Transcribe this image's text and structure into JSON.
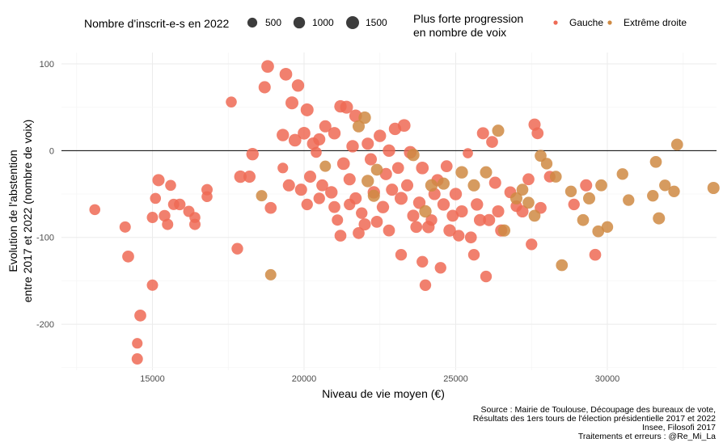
{
  "chart_data": {
    "type": "scatter",
    "xlabel": "Niveau de vie moyen (€)",
    "ylabel_lines": [
      "Evolution de l'abstention",
      "entre 2017 et 2022 (nombre de voix)"
    ],
    "xlim": [
      12000,
      33600
    ],
    "ylim": [
      -253,
      113
    ],
    "x_ticks": [
      15000,
      20000,
      25000,
      30000
    ],
    "y_ticks": [
      -200,
      -100,
      0,
      100
    ],
    "hline": 0,
    "grid": true,
    "legend_position": "top",
    "size_legend": {
      "title": "Nombre d'inscrit-e-s en 2022",
      "entries": [
        {
          "label": "500",
          "value": 500
        },
        {
          "label": "1000",
          "value": 1000
        },
        {
          "label": "1500",
          "value": 1500
        }
      ]
    },
    "color_legend": {
      "title_lines": [
        "Plus forte progression",
        "en nombre de voix"
      ],
      "entries": [
        {
          "label": "Gauche",
          "color": "#ee6a55"
        },
        {
          "label": "Extrême droite",
          "color": "#cf8a43"
        }
      ]
    },
    "caption_lines": [
      "Source : Mairie de Toulouse, Découpage des bureaux de vote,",
      "Résultats des 1ers tours de l'élection présidentielle 2017 et 2022",
      "Insee, Filosofi 2017",
      "Traitements et erreurs : @Re_Mi_La"
    ],
    "series": [
      {
        "name": "Gauche",
        "color": "#ee6a55",
        "points": [
          [
            13100,
            -68,
            800
          ],
          [
            14100,
            -88,
            900
          ],
          [
            14200,
            -122,
            1100
          ],
          [
            15000,
            -155,
            900
          ],
          [
            14600,
            -190,
            1100
          ],
          [
            14500,
            -222,
            700
          ],
          [
            14500,
            -240,
            900
          ],
          [
            15000,
            -77,
            900
          ],
          [
            15100,
            -55,
            800
          ],
          [
            15200,
            -34,
            1200
          ],
          [
            15400,
            -75,
            1000
          ],
          [
            15500,
            -85,
            900
          ],
          [
            15600,
            -40,
            800
          ],
          [
            15700,
            -62,
            900
          ],
          [
            15900,
            -62,
            1000
          ],
          [
            16200,
            -70,
            900
          ],
          [
            16400,
            -85,
            900
          ],
          [
            16400,
            -77,
            800
          ],
          [
            16800,
            -53,
            800
          ],
          [
            16800,
            -45,
            900
          ],
          [
            17600,
            56,
            800
          ],
          [
            17800,
            -113,
            1000
          ],
          [
            17900,
            -30,
            1300
          ],
          [
            18200,
            -30,
            1200
          ],
          [
            18300,
            -4,
            1300
          ],
          [
            18700,
            73,
            1200
          ],
          [
            18800,
            97,
            1400
          ],
          [
            18900,
            -66,
            1100
          ],
          [
            19300,
            18,
            1300
          ],
          [
            19300,
            -20,
            700
          ],
          [
            19400,
            88,
            1400
          ],
          [
            19500,
            -40,
            1200
          ],
          [
            19600,
            55,
            1500
          ],
          [
            19700,
            12,
            1400
          ],
          [
            19800,
            75,
            1300
          ],
          [
            19900,
            -45,
            1200
          ],
          [
            20000,
            20,
            1400
          ],
          [
            20100,
            47,
            1500
          ],
          [
            20100,
            -62,
            1000
          ],
          [
            20200,
            -30,
            1200
          ],
          [
            20300,
            8,
            1300
          ],
          [
            20400,
            -2,
            800
          ],
          [
            20500,
            13,
            1200
          ],
          [
            20500,
            -55,
            1000
          ],
          [
            20600,
            -40,
            1100
          ],
          [
            20700,
            28,
            1200
          ],
          [
            20900,
            -48,
            1300
          ],
          [
            21000,
            20,
            1300
          ],
          [
            21000,
            -65,
            1100
          ],
          [
            21100,
            -80,
            900
          ],
          [
            21200,
            51,
            1300
          ],
          [
            21200,
            -98,
            1100
          ],
          [
            21300,
            -15,
            1400
          ],
          [
            21400,
            50,
            1500
          ],
          [
            21500,
            -33,
            1200
          ],
          [
            21500,
            -62,
            1000
          ],
          [
            21600,
            5,
            1300
          ],
          [
            21700,
            40,
            1400
          ],
          [
            21700,
            -55,
            1200
          ],
          [
            21800,
            -95,
            1100
          ],
          [
            21900,
            -72,
            1000
          ],
          [
            22000,
            -85,
            1200
          ],
          [
            22100,
            8,
            1200
          ],
          [
            22200,
            -10,
            1200
          ],
          [
            22300,
            -48,
            1300
          ],
          [
            22400,
            -82,
            1100
          ],
          [
            22500,
            17,
            1300
          ],
          [
            22600,
            -65,
            1300
          ],
          [
            22700,
            -27,
            1200
          ],
          [
            22800,
            0,
            1300
          ],
          [
            22800,
            -92,
            1100
          ],
          [
            22900,
            -45,
            1200
          ],
          [
            23000,
            25,
            1300
          ],
          [
            23100,
            -20,
            1100
          ],
          [
            23200,
            -55,
            1500
          ],
          [
            23200,
            -120,
            1000
          ],
          [
            23300,
            29,
            1400
          ],
          [
            23400,
            -40,
            1200
          ],
          [
            23500,
            -2,
            1400
          ],
          [
            23600,
            -75,
            1200
          ],
          [
            23700,
            -88,
            1100
          ],
          [
            23800,
            -60,
            1300
          ],
          [
            23900,
            -128,
            1000
          ],
          [
            23900,
            -20,
            1400
          ],
          [
            24000,
            -155,
            1000
          ],
          [
            24100,
            -88,
            1300
          ],
          [
            24200,
            -80,
            1000
          ],
          [
            24300,
            -50,
            1200
          ],
          [
            24400,
            -34,
            1200
          ],
          [
            24500,
            -135,
            1000
          ],
          [
            24600,
            -62,
            1300
          ],
          [
            24700,
            -18,
            1100
          ],
          [
            24800,
            -92,
            1300
          ],
          [
            24900,
            -75,
            1100
          ],
          [
            25000,
            -50,
            1300
          ],
          [
            25100,
            -98,
            1000
          ],
          [
            25200,
            -70,
            1200
          ],
          [
            25400,
            -3,
            600
          ],
          [
            25500,
            -100,
            1100
          ],
          [
            25600,
            -120,
            1000
          ],
          [
            25700,
            -62,
            1300
          ],
          [
            25800,
            -80,
            1200
          ],
          [
            25900,
            20,
            1200
          ],
          [
            26000,
            -145,
            1000
          ],
          [
            26100,
            -80,
            1200
          ],
          [
            26200,
            10,
            1100
          ],
          [
            26300,
            -37,
            1200
          ],
          [
            26400,
            -70,
            1200
          ],
          [
            26500,
            -92,
            1200
          ],
          [
            26800,
            -48,
            1100
          ],
          [
            27000,
            -64,
            1000
          ],
          [
            27200,
            -70,
            1200
          ],
          [
            27400,
            -33,
            1100
          ],
          [
            27500,
            -108,
            1000
          ],
          [
            27600,
            30,
            1200
          ],
          [
            27700,
            20,
            1100
          ],
          [
            27800,
            -66,
            1100
          ],
          [
            28100,
            -30,
            1000
          ],
          [
            28900,
            -62,
            1000
          ],
          [
            29300,
            -40,
            1200
          ],
          [
            29600,
            -120,
            1100
          ]
        ]
      },
      {
        "name": "Extrême droite",
        "color": "#cf8a43",
        "points": [
          [
            18600,
            -52,
            900
          ],
          [
            18900,
            -143,
            900
          ],
          [
            20700,
            -18,
            900
          ],
          [
            21800,
            28,
            1200
          ],
          [
            22000,
            38,
            1300
          ],
          [
            22100,
            -35,
            1300
          ],
          [
            22300,
            -52,
            1200
          ],
          [
            22400,
            -22,
            1100
          ],
          [
            23600,
            -5,
            1300
          ],
          [
            24000,
            -70,
            1300
          ],
          [
            24200,
            -40,
            1300
          ],
          [
            24600,
            -38,
            1200
          ],
          [
            25200,
            -25,
            1300
          ],
          [
            25600,
            -40,
            1200
          ],
          [
            26000,
            -25,
            1200
          ],
          [
            26400,
            23,
            1200
          ],
          [
            26600,
            -92,
            1200
          ],
          [
            27000,
            -55,
            1200
          ],
          [
            27200,
            -45,
            1100
          ],
          [
            27400,
            -60,
            1100
          ],
          [
            27600,
            -75,
            1100
          ],
          [
            27800,
            -6,
            1100
          ],
          [
            28000,
            -15,
            1000
          ],
          [
            28300,
            -30,
            1100
          ],
          [
            28500,
            -132,
            1100
          ],
          [
            28800,
            -47,
            1000
          ],
          [
            29200,
            -80,
            1100
          ],
          [
            29400,
            -55,
            1200
          ],
          [
            29700,
            -93,
            1100
          ],
          [
            29800,
            -40,
            1100
          ],
          [
            30000,
            -88,
            1000
          ],
          [
            30500,
            -27,
            1000
          ],
          [
            30700,
            -57,
            1000
          ],
          [
            31500,
            -52,
            1000
          ],
          [
            31600,
            -13,
            1100
          ],
          [
            31700,
            -78,
            1200
          ],
          [
            31900,
            -40,
            1000
          ],
          [
            32300,
            7,
            1100
          ],
          [
            32200,
            -47,
            1000
          ],
          [
            33500,
            -43,
            1200
          ]
        ]
      }
    ]
  }
}
